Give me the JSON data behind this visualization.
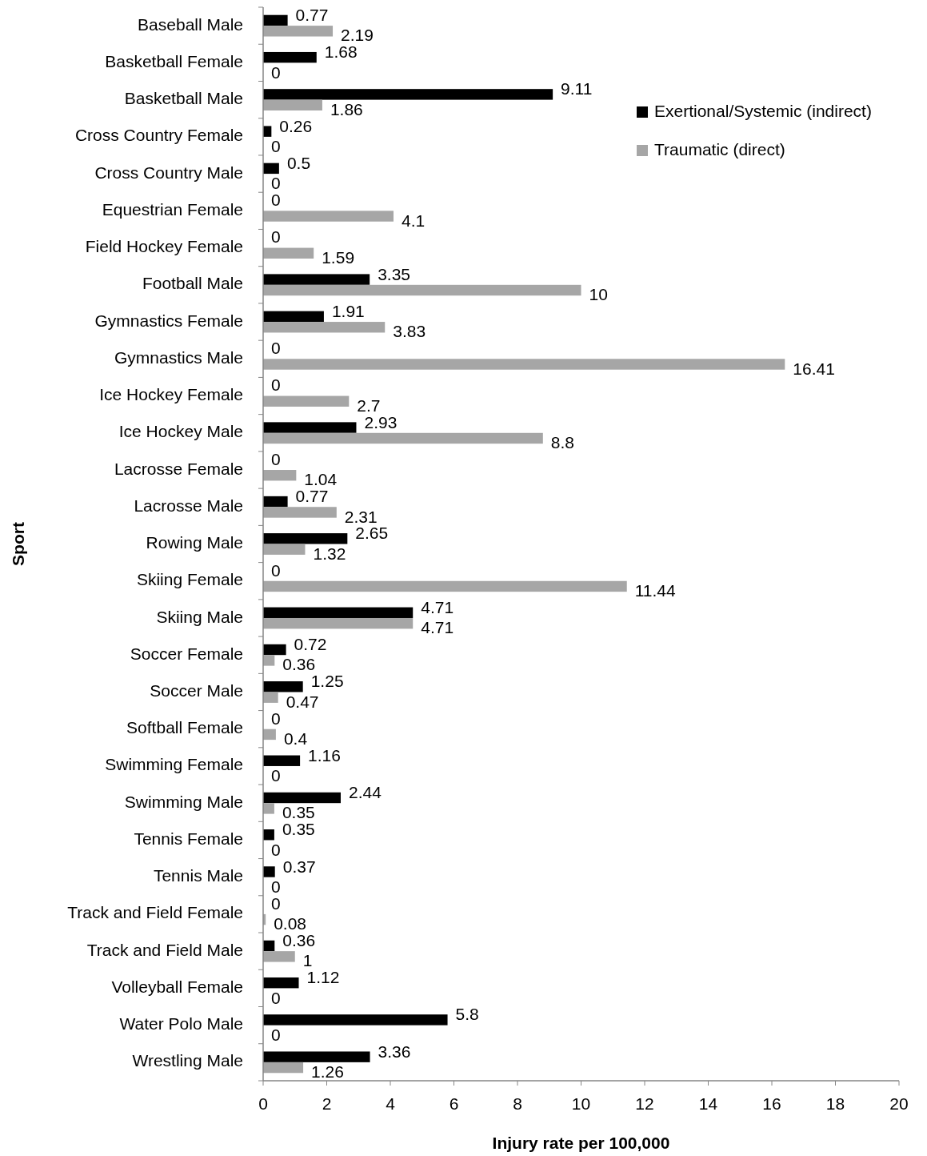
{
  "chart_data": {
    "type": "bar",
    "orientation": "horizontal",
    "xlabel": "Injury rate per 100,000",
    "ylabel": "Sport",
    "categories": [
      "Baseball Male",
      "Basketball Female",
      "Basketball Male",
      "Cross Country Female",
      "Cross Country Male",
      "Equestrian Female",
      "Field Hockey Female",
      "Football Male",
      "Gymnastics Female",
      "Gymnastics Male",
      "Ice Hockey Female",
      "Ice Hockey Male",
      "Lacrosse Female",
      "Lacrosse Male",
      "Rowing Male",
      "Skiing Female",
      "Skiing Male",
      "Soccer Female",
      "Soccer Male",
      "Softball Female",
      "Swimming Female",
      "Swimming Male",
      "Tennis Female",
      "Tennis Male",
      "Track and Field Female",
      "Track and Field Male",
      "Volleyball Female",
      "Water Polo Male",
      "Wrestling Male"
    ],
    "series": [
      {
        "name": "Exertional/Systemic (indirect)",
        "color": "#000000",
        "values": [
          0.77,
          1.68,
          9.11,
          0.26,
          0.5,
          0,
          0,
          3.35,
          1.91,
          0,
          0,
          2.93,
          0,
          0.77,
          2.65,
          0,
          4.71,
          0.72,
          1.25,
          0,
          1.16,
          2.44,
          0.35,
          0.37,
          0,
          0.36,
          1.12,
          5.8,
          3.36
        ]
      },
      {
        "name": "Traumatic (direct)",
        "color": "#a6a6a6",
        "values": [
          2.19,
          0,
          1.86,
          0,
          0,
          4.1,
          1.59,
          10,
          3.83,
          16.41,
          2.7,
          8.8,
          1.04,
          2.31,
          1.32,
          11.44,
          4.71,
          0.36,
          0.47,
          0.4,
          0,
          0.35,
          0,
          0,
          0.08,
          1,
          0,
          0,
          1.26
        ]
      }
    ],
    "xlim": [
      0,
      20
    ],
    "xticks": [
      0,
      2,
      4,
      6,
      8,
      10,
      12,
      14,
      16,
      18,
      20
    ],
    "data_labels": true,
    "legend": "top right",
    "grid": false
  }
}
